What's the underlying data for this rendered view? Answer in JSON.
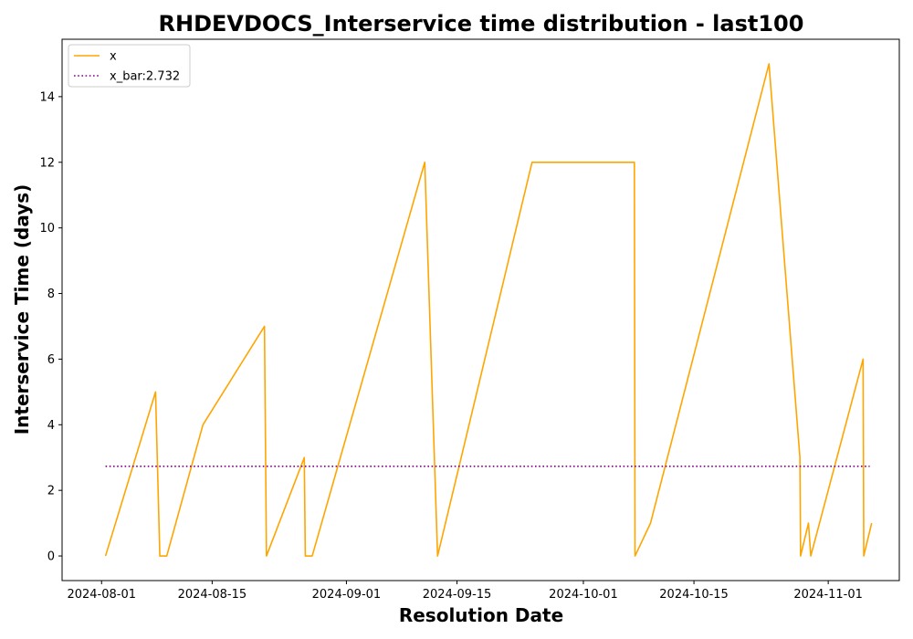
{
  "chart_data": {
    "type": "line",
    "title": "RHDEVDOCS_Interservice time distribution - last100",
    "xlabel": "Resolution Date",
    "ylabel": "Interservice Time (days)",
    "x_ticks": [
      "2024-08-01",
      "2024-08-15",
      "2024-09-01",
      "2024-09-15",
      "2024-10-01",
      "2024-10-15",
      "2024-11-01"
    ],
    "y_ticks": [
      0,
      2,
      4,
      6,
      8,
      10,
      12,
      14
    ],
    "xlim": [
      "2024-07-27",
      "2024-11-10"
    ],
    "ylim": [
      -0.75,
      15.75
    ],
    "grid": false,
    "legend_position": "top-left",
    "series": [
      {
        "name": "x",
        "color": "#ffa500",
        "style": "solid",
        "points": [
          {
            "x": "2024-08-01T12:00",
            "y": 0
          },
          {
            "x": "2024-08-07T20:00",
            "y": 5
          },
          {
            "x": "2024-08-08T09:00",
            "y": 0
          },
          {
            "x": "2024-08-09T06:00",
            "y": 0
          },
          {
            "x": "2024-08-13T20:00",
            "y": 4
          },
          {
            "x": "2024-08-21T15:00",
            "y": 7
          },
          {
            "x": "2024-08-21T21:00",
            "y": 0
          },
          {
            "x": "2024-08-26T16:00",
            "y": 3
          },
          {
            "x": "2024-08-26T19:00",
            "y": 0
          },
          {
            "x": "2024-08-27T16:00",
            "y": 0
          },
          {
            "x": "2024-09-10T22:00",
            "y": 12
          },
          {
            "x": "2024-09-12T13:00",
            "y": 0
          },
          {
            "x": "2024-09-24T12:00",
            "y": 12
          },
          {
            "x": "2024-10-07T11:00",
            "y": 12
          },
          {
            "x": "2024-10-07T13:00",
            "y": 0
          },
          {
            "x": "2024-10-09T12:00",
            "y": 1
          },
          {
            "x": "2024-10-24T12:00",
            "y": 15
          },
          {
            "x": "2024-10-28T10:00",
            "y": 3
          },
          {
            "x": "2024-10-28T12:00",
            "y": 0
          },
          {
            "x": "2024-10-29T12:00",
            "y": 1
          },
          {
            "x": "2024-10-29T19:00",
            "y": 0
          },
          {
            "x": "2024-11-05T10:00",
            "y": 6
          },
          {
            "x": "2024-11-05T12:00",
            "y": 0
          },
          {
            "x": "2024-11-06T12:00",
            "y": 1
          }
        ]
      },
      {
        "name": "x_bar:2.732",
        "color": "#800080",
        "style": "dotted",
        "points": [
          {
            "x": "2024-08-01T12:00",
            "y": 2.732
          },
          {
            "x": "2024-11-06T06:00",
            "y": 2.732
          }
        ]
      }
    ]
  }
}
